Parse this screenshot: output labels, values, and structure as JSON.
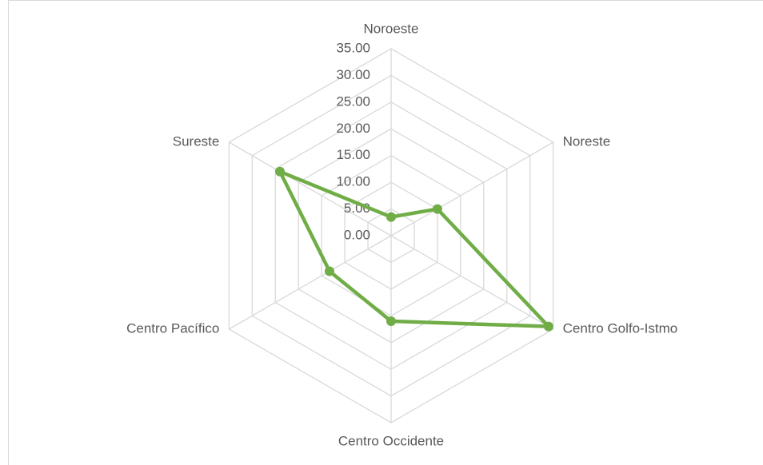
{
  "chart_data": {
    "type": "radar",
    "categories": [
      "Noroeste",
      "Noreste",
      "Centro Golfo-Istmo",
      "Centro Occidente",
      "Centro Pacífico",
      "Sureste"
    ],
    "series": [
      {
        "color": "#70ad47",
        "values": [
          3.5,
          10,
          34,
          16,
          13.3,
          24
        ]
      }
    ],
    "ylim": [
      0,
      35
    ],
    "yticks": [
      {
        "value": 0,
        "label": "0.00"
      },
      {
        "value": 5,
        "label": "5.00"
      },
      {
        "value": 10,
        "label": "10.00"
      },
      {
        "value": 15,
        "label": "15.00"
      },
      {
        "value": 20,
        "label": "20.00"
      },
      {
        "value": 25,
        "label": "25.00"
      },
      {
        "value": 30,
        "label": "30.00"
      },
      {
        "value": 35,
        "label": "35.00"
      }
    ],
    "grid": true
  }
}
